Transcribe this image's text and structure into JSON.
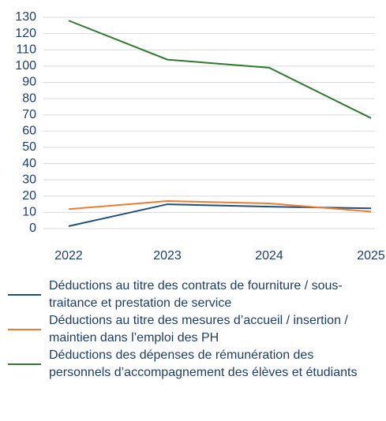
{
  "chart_data": {
    "type": "line",
    "categories": [
      "2022",
      "2023",
      "2024",
      "2025"
    ],
    "series": [
      {
        "name": "Déductions au titre des contrats de fourniture / sous-traitance et prestation de service",
        "color": "#1f4e79",
        "values": [
          1.5,
          15,
          13.5,
          12.5
        ]
      },
      {
        "name": "Déductions au titre des mesures d’accueil / insertion / maintien dans l’emploi des PH",
        "color": "#ed7d31",
        "values": [
          12,
          17,
          15.5,
          10.5
        ]
      },
      {
        "name": "Déductions des dépenses de rémunération des personnels d’accompagnement des élèves et étudiants",
        "color": "#2e7a2e",
        "values": [
          128,
          104,
          99,
          68
        ]
      }
    ],
    "ylim": [
      0,
      130
    ],
    "yticks": [
      0,
      10,
      20,
      30,
      40,
      50,
      60,
      70,
      80,
      90,
      100,
      110,
      120,
      130
    ],
    "grid": true
  }
}
